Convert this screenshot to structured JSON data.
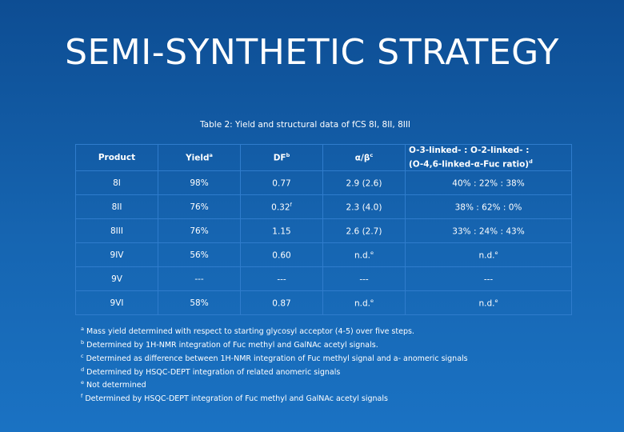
{
  "title": "SEMI-SYNTHETIC STRATEGY",
  "caption": "Table 2: Yield and structural data of fCS 8I, 8II, 8III",
  "table": {
    "headers": {
      "product": "Product",
      "yield": "Yield",
      "yield_sup": "a",
      "df": "DF",
      "df_sup": "b",
      "alpha_beta": "α/β",
      "alpha_beta_sup": "c",
      "linkage_line1": "O-3-linked- : O-2-linked- :",
      "linkage_line2": "(O-4,6-linked-α-Fuc ratio)",
      "linkage_sup": "d"
    },
    "rows": [
      {
        "product": "8I",
        "yield": "98%",
        "df": "0.77",
        "df_sup": "",
        "ab": "2.9 (2.6)",
        "ab_sup": "",
        "linkage": "40% : 22% : 38%",
        "linkage_sup": ""
      },
      {
        "product": "8II",
        "yield": "76%",
        "df": "0.32",
        "df_sup": "f",
        "ab": "2.3 (4.0)",
        "ab_sup": "",
        "linkage": "38% : 62% : 0%",
        "linkage_sup": ""
      },
      {
        "product": "8III",
        "yield": "76%",
        "df": "1.15",
        "df_sup": "",
        "ab": "2.6 (2.7)",
        "ab_sup": "",
        "linkage": "33% : 24% : 43%",
        "linkage_sup": ""
      },
      {
        "product": "9IV",
        "yield": "56%",
        "df": "0.60",
        "df_sup": "",
        "ab": "n.d.",
        "ab_sup": "e",
        "linkage": "n.d.",
        "linkage_sup": "e"
      },
      {
        "product": "9V",
        "yield": "---",
        "df": "---",
        "df_sup": "",
        "ab": "---",
        "ab_sup": "",
        "linkage": "---",
        "linkage_sup": ""
      },
      {
        "product": "9VI",
        "yield": "58%",
        "df": "0.87",
        "df_sup": "",
        "ab": "n.d.",
        "ab_sup": "e",
        "linkage": "n.d.",
        "linkage_sup": "e"
      }
    ]
  },
  "footnotes": [
    {
      "mark": "a",
      "text": "Mass yield determined with respect to starting glycosyl acceptor (4-5) over five steps."
    },
    {
      "mark": "b",
      "text": "Determined by 1H-NMR integration of Fuc methyl and GalNAc acetyl signals."
    },
    {
      "mark": "c",
      "text": "Determined as difference between 1H-NMR integration of Fuc methyl signal and a- anomeric signals"
    },
    {
      "mark": "d",
      "text": "Determined by HSQC-DEPT integration of related anomeric signals"
    },
    {
      "mark": "e",
      "text": "Not determined"
    },
    {
      "mark": "f",
      "text": "Determined by HSQC-DEPT integration of Fuc methyl and GalNAc acetyl signals"
    }
  ],
  "colors": {
    "background_top": "#0d4d93",
    "background_bottom": "#1a72c3",
    "table_border": "#2f7ccc",
    "text": "#ffffff"
  }
}
